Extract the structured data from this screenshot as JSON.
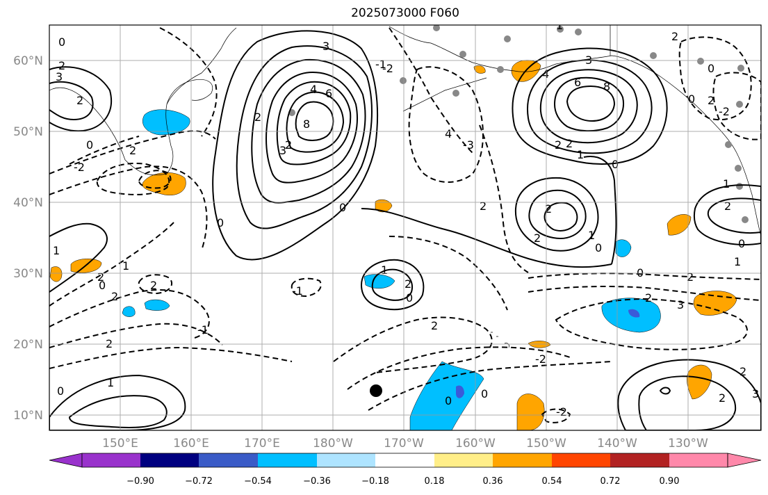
{
  "title": "2025073000 F060",
  "map": {
    "lon_labels": [
      "150°E",
      "160°E",
      "170°E",
      "180°W",
      "170°W",
      "160°W",
      "150°W",
      "140°W",
      "130°W"
    ],
    "lat_labels": [
      "60°N",
      "50°N",
      "40°N",
      "30°N",
      "20°N",
      "10°N"
    ],
    "contour_labels": [
      "0",
      "2",
      "3",
      "2",
      "0",
      "2",
      "-2",
      "1",
      "2",
      "0",
      "1",
      "2",
      "2",
      "-1",
      "2",
      "0",
      "1",
      "3",
      "6",
      "8",
      "4",
      "4",
      "-3",
      "-2",
      "3",
      "2",
      "-1",
      "0",
      "2",
      "4",
      "6",
      "8",
      "2",
      "2",
      "1",
      "2",
      "1",
      "0",
      "0",
      "2",
      "2",
      "3",
      "2",
      "1",
      "2",
      "2",
      "0",
      "0",
      "-2",
      "-2",
      "1",
      "-1",
      "0",
      "3",
      "2",
      "2",
      "2",
      "1",
      "0",
      "-2",
      "1",
      "2",
      "0",
      "2",
      "0",
      "0",
      "2",
      "3",
      "0"
    ],
    "colors": {
      "ocean": "#ffffff",
      "grid": "#999999",
      "positive_shading": "#ffa500",
      "negative_shading": "#00bfff",
      "strong_negative": "#3a5bd9",
      "station_marker": "#888888"
    }
  },
  "colorbar": {
    "ticks": [
      "−0.90",
      "−0.72",
      "−0.54",
      "−0.36",
      "−0.18",
      "0.18",
      "0.36",
      "0.54",
      "0.72",
      "0.90"
    ],
    "colors": [
      "#9932cc",
      "#000080",
      "#3a5bc7",
      "#00bfff",
      "#aee4ff",
      "#ffffff",
      "#ffee88",
      "#ffa500",
      "#ff4500",
      "#b22222",
      "#ff88aa"
    ]
  }
}
